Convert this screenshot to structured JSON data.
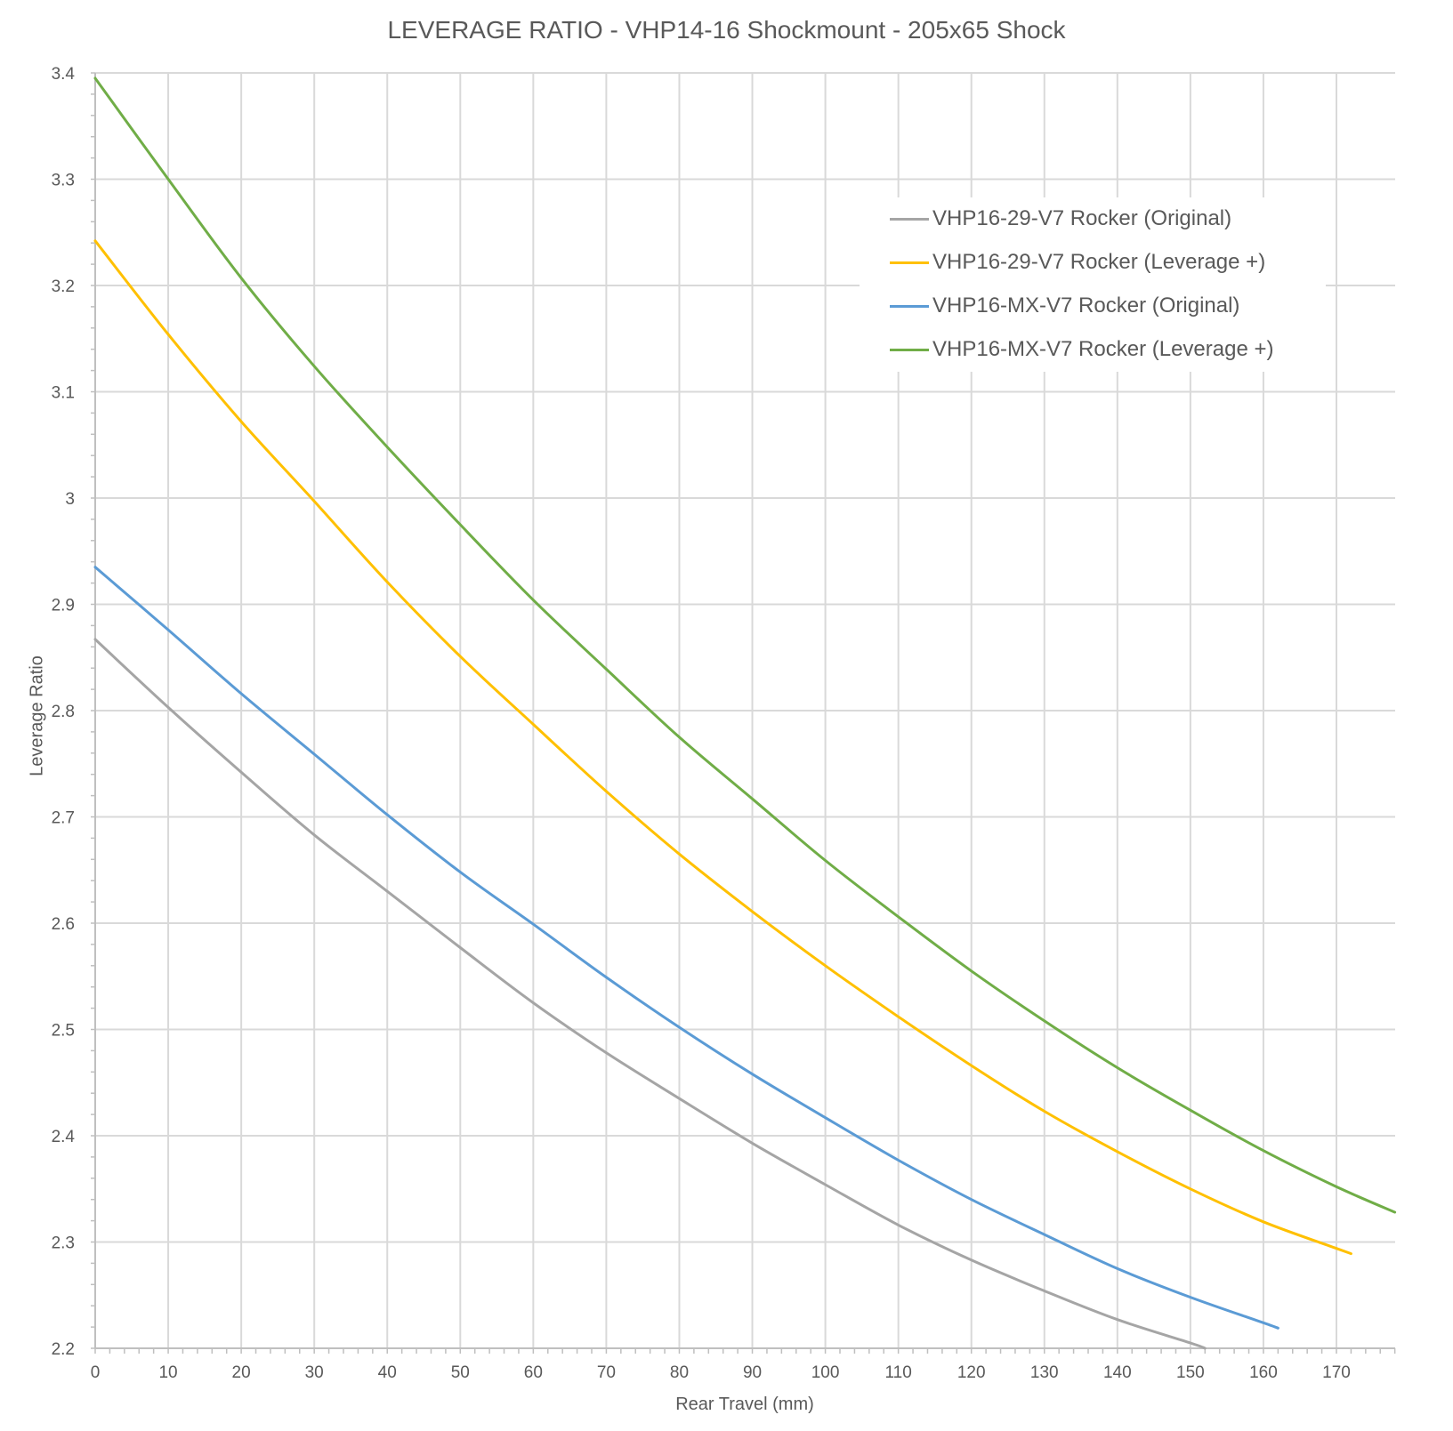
{
  "chart_data": {
    "type": "line",
    "title": "LEVERAGE RATIO - VHP14-16 Shockmount - 205x65 Shock",
    "xlabel": "Rear Travel (mm)",
    "ylabel": "Leverage Ratio",
    "xlim": [
      0,
      178
    ],
    "ylim": [
      2.2,
      3.4
    ],
    "x_ticks": [
      0,
      10,
      20,
      30,
      40,
      50,
      60,
      70,
      80,
      90,
      100,
      110,
      120,
      130,
      140,
      150,
      160,
      170
    ],
    "y_ticks": [
      "2.2",
      "2.3",
      "2.4",
      "2.5",
      "2.6",
      "2.7",
      "2.8",
      "2.9",
      "3",
      "3.1",
      "3.2",
      "3.3",
      "3.4"
    ],
    "grid": true,
    "legend_position": "upper right (inside plot)",
    "series": [
      {
        "name": "VHP16-29-V7 Rocker (Original)",
        "color": "#A5A5A5",
        "x": [
          0,
          10,
          20,
          30,
          40,
          50,
          60,
          70,
          80,
          90,
          100,
          110,
          120,
          130,
          140,
          150,
          152
        ],
        "values": [
          2.867,
          2.803,
          2.742,
          2.683,
          2.63,
          2.577,
          2.525,
          2.478,
          2.435,
          2.393,
          2.354,
          2.316,
          2.283,
          2.254,
          2.227,
          2.205,
          2.2
        ]
      },
      {
        "name": "VHP16-29-V7 Rocker (Leverage +)",
        "color": "#FFC000",
        "x": [
          0,
          10,
          20,
          30,
          40,
          50,
          60,
          70,
          80,
          90,
          100,
          110,
          120,
          130,
          140,
          150,
          160,
          170,
          172
        ],
        "values": [
          3.242,
          3.154,
          3.072,
          2.997,
          2.921,
          2.851,
          2.787,
          2.724,
          2.665,
          2.611,
          2.56,
          2.512,
          2.466,
          2.423,
          2.385,
          2.35,
          2.319,
          2.294,
          2.289
        ]
      },
      {
        "name": "VHP16-MX-V7 Rocker (Original)",
        "color": "#5B9BD5",
        "x": [
          0,
          10,
          20,
          30,
          40,
          50,
          60,
          70,
          80,
          90,
          100,
          110,
          120,
          130,
          140,
          150,
          160,
          162
        ],
        "values": [
          2.935,
          2.876,
          2.816,
          2.759,
          2.702,
          2.648,
          2.599,
          2.549,
          2.502,
          2.458,
          2.417,
          2.377,
          2.34,
          2.307,
          2.275,
          2.248,
          2.224,
          2.219
        ]
      },
      {
        "name": "VHP16-MX-V7 Rocker (Leverage +)",
        "color": "#70AD47",
        "x": [
          0,
          10,
          20,
          30,
          40,
          50,
          60,
          70,
          80,
          90,
          100,
          110,
          120,
          130,
          140,
          150,
          160,
          170,
          178
        ],
        "values": [
          3.395,
          3.3,
          3.207,
          3.124,
          3.048,
          2.975,
          2.904,
          2.839,
          2.775,
          2.717,
          2.659,
          2.606,
          2.555,
          2.508,
          2.464,
          2.424,
          2.386,
          2.352,
          2.328
        ]
      }
    ]
  },
  "style": {
    "grid_color": "#D9D9D9",
    "axis_color": "#BFBFBF",
    "text_color": "#595959"
  }
}
